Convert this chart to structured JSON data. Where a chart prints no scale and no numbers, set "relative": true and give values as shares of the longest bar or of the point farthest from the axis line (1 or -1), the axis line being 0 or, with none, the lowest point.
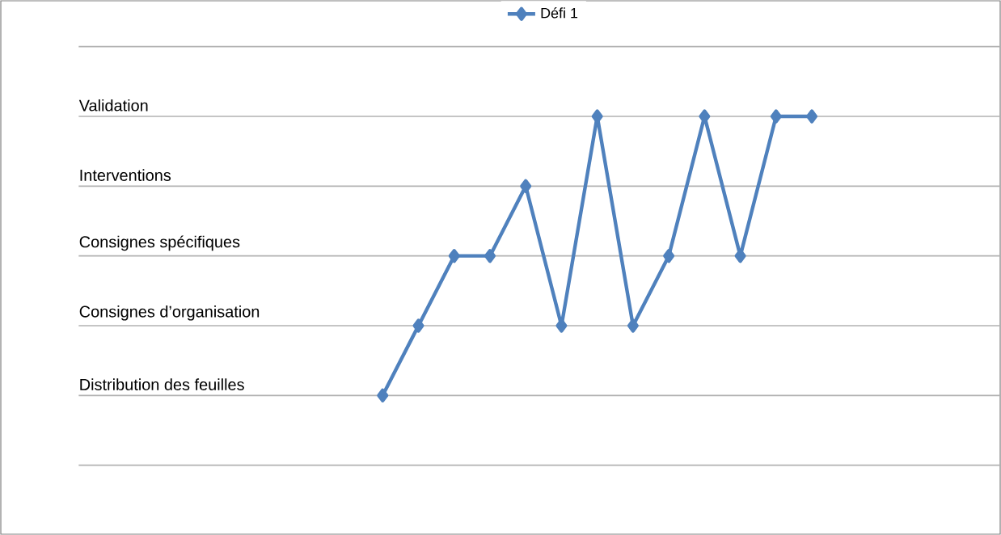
{
  "chart_data": {
    "type": "line",
    "relative": true,
    "categories": [
      null,
      null,
      null,
      null,
      null,
      null,
      null,
      null,
      null,
      null,
      null,
      null,
      null,
      null,
      null,
      null,
      null,
      null,
      null,
      null,
      null,
      null,
      null,
      null,
      null,
      null
    ],
    "series": [
      {
        "name": "Défi 1",
        "color": "#4f81bd",
        "values": [
          null,
          null,
          null,
          null,
          null,
          null,
          null,
          null,
          0.2,
          0.4,
          0.6,
          0.6,
          0.8,
          0.4,
          1,
          0.4,
          0.6,
          1,
          0.6,
          1,
          1,
          null,
          null,
          null,
          null,
          null
        ]
      }
    ],
    "annotations": [
      "Distribution des feuilles",
      "Consignes d’organisation",
      "Consignes spécifiques",
      "Interventions",
      "Validation"
    ],
    "grid": "y",
    "legend": "top",
    "marker": "diamond",
    "line_style": "solid"
  }
}
